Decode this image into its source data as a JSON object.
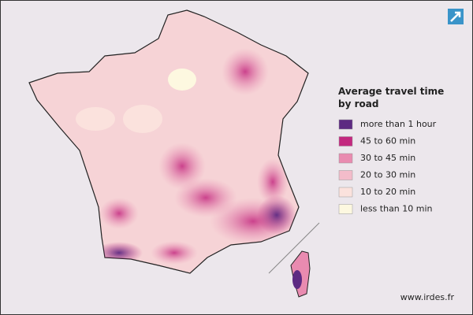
{
  "legend": {
    "title_lines": [
      "Average travel time",
      "by road"
    ],
    "items": [
      {
        "label": "more than 1 hour",
        "color": "#5d2a82"
      },
      {
        "label": "45 to 60 min",
        "color": "#c3287f"
      },
      {
        "label": "30 to 45 min",
        "color": "#e98bb0"
      },
      {
        "label": "20 to 30 min",
        "color": "#f3bcca"
      },
      {
        "label": "10 to 20 min",
        "color": "#fbe2dd"
      },
      {
        "label": "less than 10 min",
        "color": "#fdf8e0"
      }
    ]
  },
  "footer": "www.irdes.fr"
}
